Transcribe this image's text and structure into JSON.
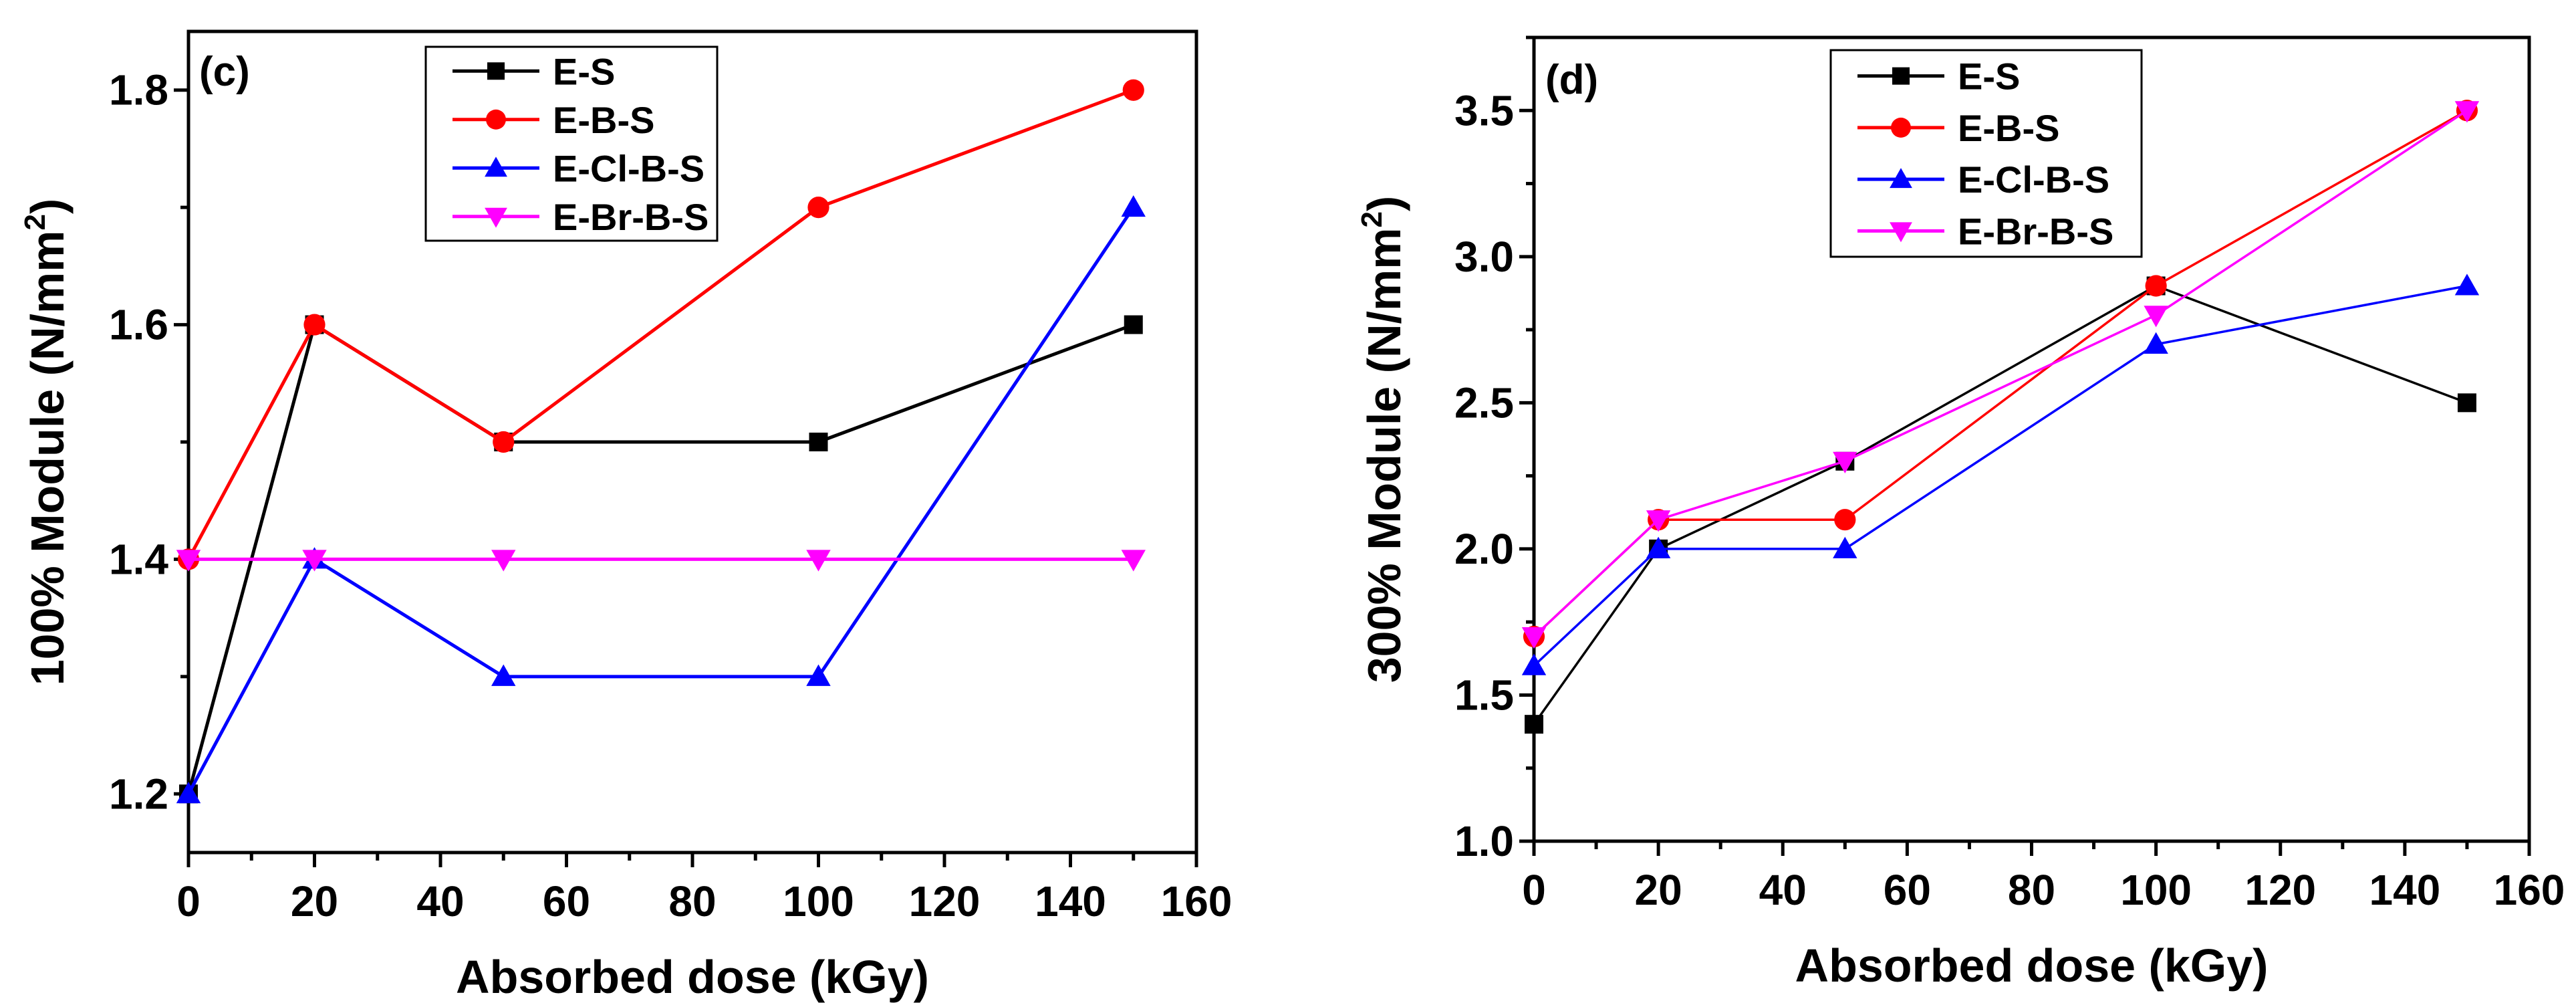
{
  "colors": {
    "E-S": "#000000",
    "E-B-S": "#ff0000",
    "E-Cl-B-S": "#0000ff",
    "E-Br-B-S": "#ff00ff"
  },
  "chart_data": [
    {
      "type": "line",
      "panel_label": "(c)",
      "xlabel": "Absorbed dose (kGy)",
      "ylabel": "100% Module (N/mm",
      "ylabel_sup": "2",
      "ylabel_close": ")",
      "xlim": [
        0,
        160
      ],
      "ylim": [
        1.15,
        1.85
      ],
      "xticks": [
        "0",
        "20",
        "40",
        "60",
        "80",
        "100",
        "120",
        "140",
        "160"
      ],
      "yticks": [
        "1.2",
        "1.4",
        "1.6",
        "1.8"
      ],
      "grid": false,
      "legend_position": "top-center",
      "x": [
        0,
        20,
        50,
        100,
        150
      ],
      "series": [
        {
          "name": "E-S",
          "marker": "square",
          "values": [
            1.2,
            1.6,
            1.5,
            1.5,
            1.6
          ]
        },
        {
          "name": "E-B-S",
          "marker": "circle",
          "values": [
            1.4,
            1.6,
            1.5,
            1.7,
            1.8
          ]
        },
        {
          "name": "E-Cl-B-S",
          "marker": "triangle-up",
          "values": [
            1.2,
            1.4,
            1.3,
            1.3,
            1.7
          ]
        },
        {
          "name": "E-Br-B-S",
          "marker": "triangle-down",
          "values": [
            1.4,
            1.4,
            1.4,
            1.4,
            1.4
          ]
        }
      ]
    },
    {
      "type": "line",
      "panel_label": "(d)",
      "xlabel": "Absorbed dose (kGy)",
      "ylabel": "300% Module (N/mm",
      "ylabel_sup": "2",
      "ylabel_close": ")",
      "xlim": [
        0,
        160
      ],
      "ylim": [
        1.0,
        3.75
      ],
      "xticks": [
        "0",
        "20",
        "40",
        "60",
        "80",
        "100",
        "120",
        "140",
        "160"
      ],
      "yticks": [
        "1.0",
        "1.5",
        "2.0",
        "2.5",
        "3.0",
        "3.5"
      ],
      "grid": false,
      "legend_position": "top-center",
      "x": [
        0,
        20,
        50,
        100,
        150
      ],
      "series": [
        {
          "name": "E-S",
          "marker": "square",
          "values": [
            1.4,
            2.0,
            2.3,
            2.9,
            2.5
          ]
        },
        {
          "name": "E-B-S",
          "marker": "circle",
          "values": [
            1.7,
            2.1,
            2.1,
            2.9,
            3.5
          ]
        },
        {
          "name": "E-Cl-B-S",
          "marker": "triangle-up",
          "values": [
            1.6,
            2.0,
            2.0,
            2.7,
            2.9
          ]
        },
        {
          "name": "E-Br-B-S",
          "marker": "triangle-down",
          "values": [
            1.7,
            2.1,
            2.3,
            2.8,
            3.5
          ]
        }
      ]
    }
  ]
}
